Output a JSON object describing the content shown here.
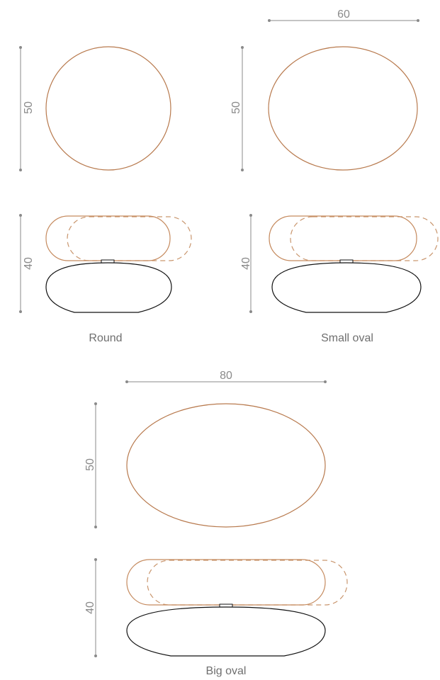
{
  "variants": [
    {
      "id": "round",
      "name": "Round",
      "width_label": "",
      "depth_label": "50",
      "height_label": "40"
    },
    {
      "id": "small-oval",
      "name": "Small oval",
      "width_label": "60",
      "depth_label": "50",
      "height_label": "40"
    },
    {
      "id": "big-oval",
      "name": "Big oval",
      "width_label": "80",
      "depth_label": "50",
      "height_label": "40"
    }
  ],
  "colors": {
    "dimension": "#8a8a8a",
    "outline": "#b87a4e",
    "base": "#111111"
  }
}
